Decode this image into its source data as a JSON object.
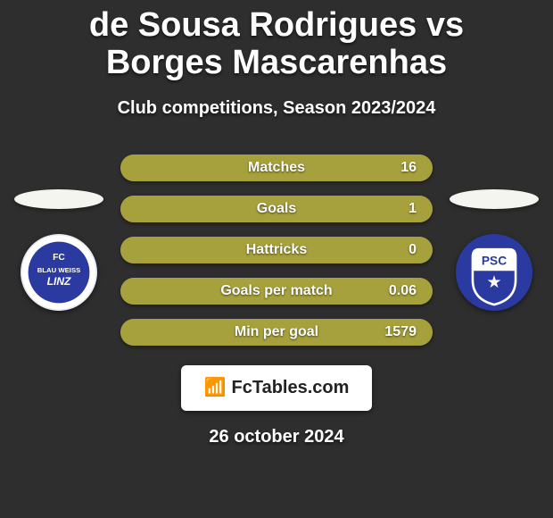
{
  "colors": {
    "bg": "#2e2e2e",
    "title_color": "#ffffff",
    "subtitle_color": "#ffffff",
    "bar_track": "#5a5a5a",
    "bar_fill": "#a6a13c",
    "bar_text": "#ffffff",
    "player_ellipse_bg": "#f5f5f0",
    "logo_bg": "#ffffff",
    "logo_text": "#222222",
    "date_color": "#ffffff"
  },
  "typography": {
    "title_fontsize": 38,
    "subtitle_fontsize": 20,
    "bar_label_fontsize": 16,
    "bar_value_fontsize": 16,
    "date_fontsize": 20
  },
  "header": {
    "title": "de Sousa Rodrigues vs Borges Mascarenhas",
    "subtitle": "Club competitions, Season 2023/2024"
  },
  "left_club": {
    "badge_text_lines": [
      "FC",
      "BLAU WEISS",
      "LINZ"
    ],
    "bg": "#e9e9f3",
    "outer_ring": "#ffffff",
    "inner": "#2b3aa0",
    "text_color": "#ffffff"
  },
  "right_club": {
    "badge_text": "PSC",
    "bg": "#2b3aa0",
    "shield_top": "#ffffff",
    "shield_bottom": "#2b3aa0",
    "star_color": "#ffffff"
  },
  "stats": [
    {
      "label": "Matches",
      "value": "16",
      "fill_pct": 100
    },
    {
      "label": "Goals",
      "value": "1",
      "fill_pct": 100
    },
    {
      "label": "Hattricks",
      "value": "0",
      "fill_pct": 100
    },
    {
      "label": "Goals per match",
      "value": "0.06",
      "fill_pct": 100
    },
    {
      "label": "Min per goal",
      "value": "1579",
      "fill_pct": 100
    }
  ],
  "footer": {
    "brand_icon": "📶",
    "brand_text": "FcTables.com",
    "date": "26 october 2024"
  }
}
